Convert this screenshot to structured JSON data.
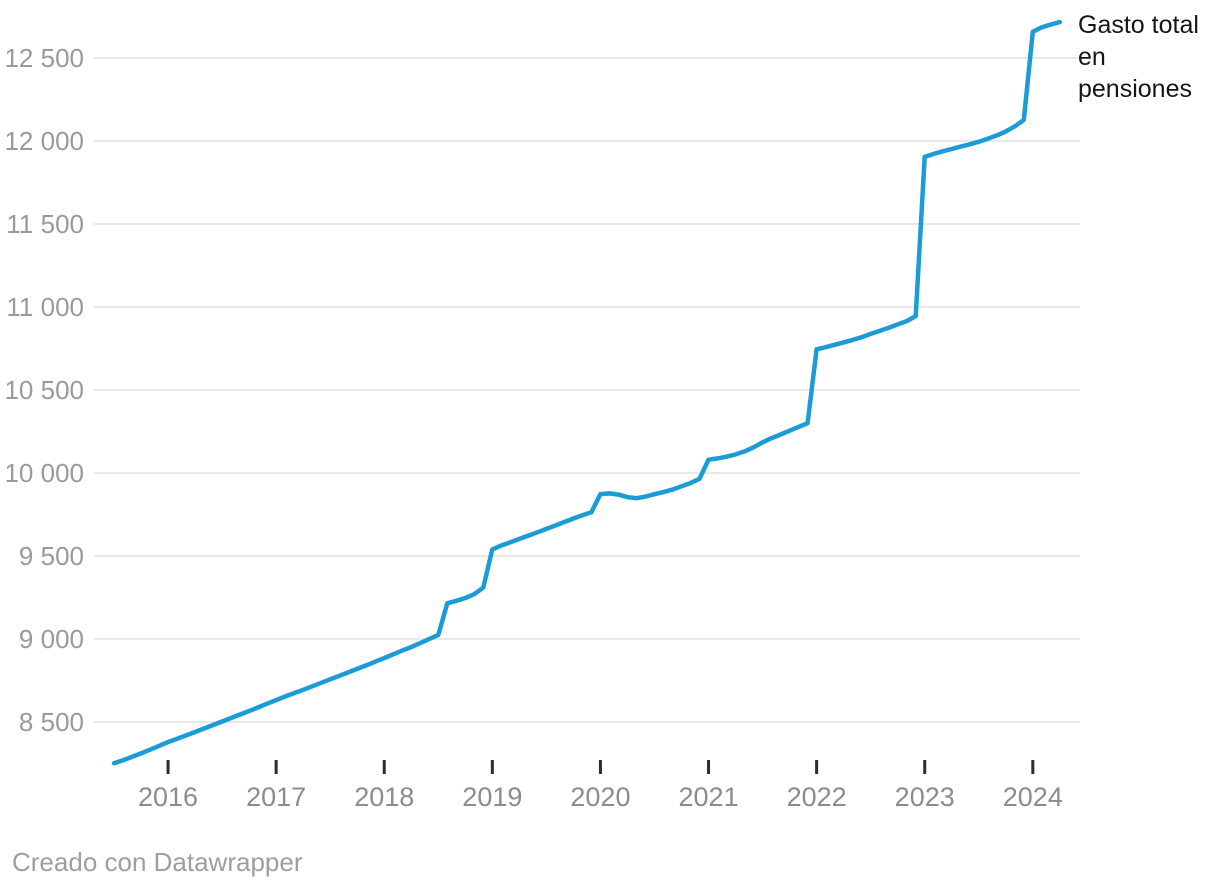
{
  "chart_data": {
    "type": "line",
    "title": "",
    "series": [
      {
        "name": "Gasto total en pensiones",
        "start_month": "2015-07",
        "frequency": "monthly",
        "values": [
          8252,
          8270,
          8290,
          8311,
          8333,
          8356,
          8379,
          8399,
          8419,
          8440,
          8461,
          8482,
          8503,
          8524,
          8545,
          8566,
          8588,
          8610,
          8632,
          8654,
          8674,
          8694,
          8715,
          8736,
          8757,
          8778,
          8799,
          8820,
          8841,
          8863,
          8885,
          8908,
          8930,
          8952,
          8975,
          9000,
          9025,
          9215,
          9230,
          9247,
          9270,
          9310,
          9540,
          9563,
          9583,
          9603,
          9623,
          9643,
          9663,
          9684,
          9705,
          9726,
          9746,
          9764,
          9873,
          9877,
          9870,
          9855,
          9848,
          9858,
          9872,
          9885,
          9900,
          9920,
          9940,
          9965,
          10080,
          10088,
          10098,
          10112,
          10130,
          10155,
          10185,
          10210,
          10232,
          10255,
          10278,
          10300,
          10745,
          10758,
          10772,
          10787,
          10802,
          10818,
          10838,
          10856,
          10875,
          10895,
          10915,
          10945,
          11904,
          11922,
          11938,
          11952,
          11966,
          11980,
          11996,
          12014,
          12034,
          12058,
          12088,
          12127,
          12658,
          12685,
          12702,
          12716
        ]
      }
    ],
    "y_axis": {
      "ticks": [
        8500,
        9000,
        9500,
        10000,
        10500,
        11000,
        11500,
        12000,
        12500
      ],
      "tick_labels": [
        "8 500",
        "9 000",
        "9 500",
        "10 000",
        "10 500",
        "11 000",
        "11 500",
        "12 000",
        "12 500"
      ],
      "ylim": [
        8210,
        12850
      ],
      "gridlines": true
    },
    "x_axis": {
      "tick_years": [
        2016,
        2017,
        2018,
        2019,
        2020,
        2021,
        2022,
        2023,
        2024
      ],
      "tick_labels": [
        "2016",
        "2017",
        "2018",
        "2019",
        "2020",
        "2021",
        "2022",
        "2023",
        "2024"
      ]
    },
    "line_color": "#1b9cd6",
    "legend_position": "annotation-right-of-line-end"
  },
  "annotation": {
    "series_label": "Gasto total en pensiones"
  },
  "footer": {
    "attribution": "Creado con Datawrapper"
  },
  "colors": {
    "line": "#1b9cd6",
    "gridline": "#e8e8e8",
    "y_tick_label": "#9a9a9a",
    "x_tick_label": "#8c8c8c",
    "tick_mark": "#2d2d2d",
    "annotation_text": "#161616",
    "attribution_text": "#9e9e9e",
    "background": "#ffffff"
  }
}
